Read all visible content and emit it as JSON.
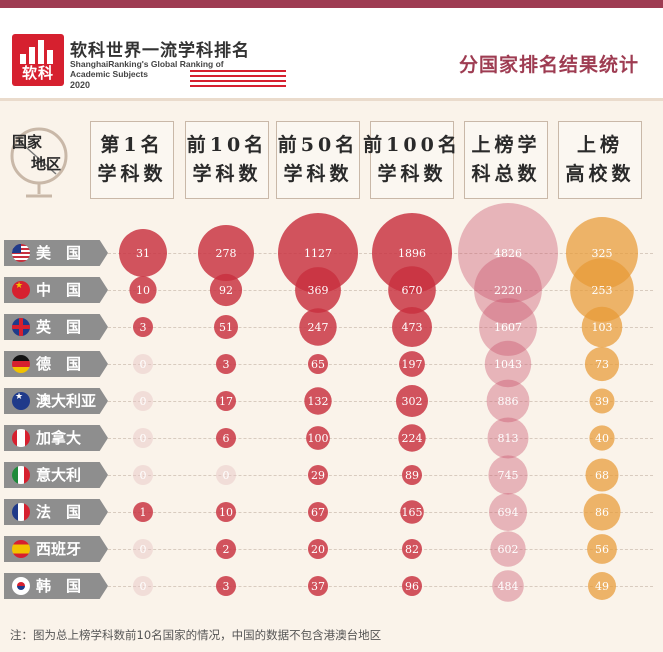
{
  "header": {
    "logo_text": "软科",
    "brand_cn": "软科世界一流学科排名",
    "brand_en_line1": "ShanghaiRanking's Global Ranking of",
    "brand_en_line2": "Academic Subjects",
    "brand_year": "2020",
    "title": "分国家排名结果统计"
  },
  "corner": {
    "line1": "国家",
    "line2": "地区"
  },
  "footnote": "注：图为总上榜学科数前10名国家的情况，中国的数据不包含港澳台地区",
  "colors": {
    "red": "#c8303e",
    "pink": "#c8506a",
    "orange": "#e89a36",
    "label_bg": "#8e8e8e",
    "brand": "#9e3c52"
  },
  "chart_data": {
    "type": "table",
    "columns": [
      {
        "line1": "第1名",
        "line2": "学科数"
      },
      {
        "line1": "前10名",
        "line2": "学科数"
      },
      {
        "line1": "前50名",
        "line2": "学科数"
      },
      {
        "line1": "前100名",
        "line2": "学科数"
      },
      {
        "line1": "上榜学",
        "line2": "科总数"
      },
      {
        "line1": "上榜",
        "line2": "高校数"
      }
    ],
    "rows": [
      {
        "country": "美国",
        "flag": "us-flag-icon",
        "values": [
          31,
          278,
          1127,
          1896,
          4826,
          325
        ]
      },
      {
        "country": "中国",
        "flag": "china-flag-icon",
        "values": [
          10,
          92,
          369,
          670,
          2220,
          253
        ]
      },
      {
        "country": "英国",
        "flag": "uk-flag-icon",
        "values": [
          3,
          51,
          247,
          473,
          1607,
          103
        ]
      },
      {
        "country": "德国",
        "flag": "germany-flag-icon",
        "values": [
          0,
          3,
          65,
          197,
          1043,
          73
        ]
      },
      {
        "country": "澳大利亚",
        "flag": "australia-flag-icon",
        "values": [
          0,
          17,
          132,
          302,
          886,
          39
        ]
      },
      {
        "country": "加拿大",
        "flag": "canada-flag-icon",
        "values": [
          0,
          6,
          100,
          224,
          813,
          40
        ]
      },
      {
        "country": "意大利",
        "flag": "italy-flag-icon",
        "values": [
          0,
          0,
          29,
          89,
          745,
          68
        ]
      },
      {
        "country": "法国",
        "flag": "france-flag-icon",
        "values": [
          1,
          10,
          67,
          165,
          694,
          86
        ]
      },
      {
        "country": "西班牙",
        "flag": "spain-flag-icon",
        "values": [
          0,
          2,
          20,
          82,
          602,
          56
        ]
      },
      {
        "country": "韩国",
        "flag": "korea-flag-icon",
        "values": [
          0,
          3,
          37,
          96,
          484,
          49
        ]
      }
    ]
  }
}
